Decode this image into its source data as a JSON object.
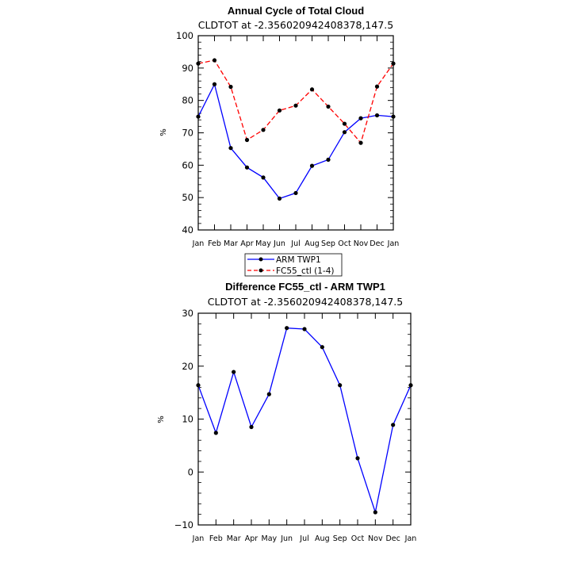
{
  "chart_data": [
    {
      "type": "line",
      "title": "Annual Cycle of Total Cloud",
      "subtitle": "CLDTOT at -2.356020942408378,147.5",
      "ylabel": "%",
      "xlabel": "",
      "categories": [
        "Jan",
        "Feb",
        "Mar",
        "Apr",
        "May",
        "Jun",
        "Jul",
        "Aug",
        "Sep",
        "Oct",
        "Nov",
        "Dec",
        "Jan"
      ],
      "ylim": [
        40,
        100
      ],
      "yticks": [
        40,
        50,
        60,
        70,
        80,
        90,
        100
      ],
      "series": [
        {
          "name": "ARM TWP1",
          "color": "#0000ff",
          "dash": "solid",
          "values": [
            75,
            85,
            65.3,
            59.3,
            56.2,
            49.7,
            51.4,
            59.8,
            61.7,
            70.2,
            74.5,
            75.4,
            75
          ]
        },
        {
          "name": "FC55_ctl (1-4)",
          "color": "#ff0000",
          "dash": "dashed",
          "values": [
            91.4,
            92.4,
            84.2,
            67.8,
            70.9,
            76.9,
            78.4,
            83.4,
            78.1,
            72.8,
            66.9,
            84.3,
            91.4
          ]
        }
      ],
      "legend": {
        "position": "bottom-center",
        "entries": [
          "ARM TWP1",
          "FC55_ctl (1-4)"
        ]
      }
    },
    {
      "type": "line",
      "title": "Difference FC55_ctl - ARM TWP1",
      "subtitle": "CLDTOT at -2.356020942408378,147.5",
      "ylabel": "%",
      "xlabel": "",
      "categories": [
        "Jan",
        "Feb",
        "Mar",
        "Apr",
        "May",
        "Jun",
        "Jul",
        "Aug",
        "Sep",
        "Oct",
        "Nov",
        "Dec",
        "Jan"
      ],
      "ylim": [
        -10,
        30
      ],
      "yticks": [
        -10,
        0,
        10,
        20,
        30
      ],
      "series": [
        {
          "name": "Difference",
          "color": "#0000ff",
          "dash": "solid",
          "values": [
            16.4,
            7.4,
            18.9,
            8.5,
            14.7,
            27.2,
            27.0,
            23.6,
            16.4,
            2.6,
            -7.6,
            8.9,
            16.4
          ]
        }
      ]
    }
  ]
}
